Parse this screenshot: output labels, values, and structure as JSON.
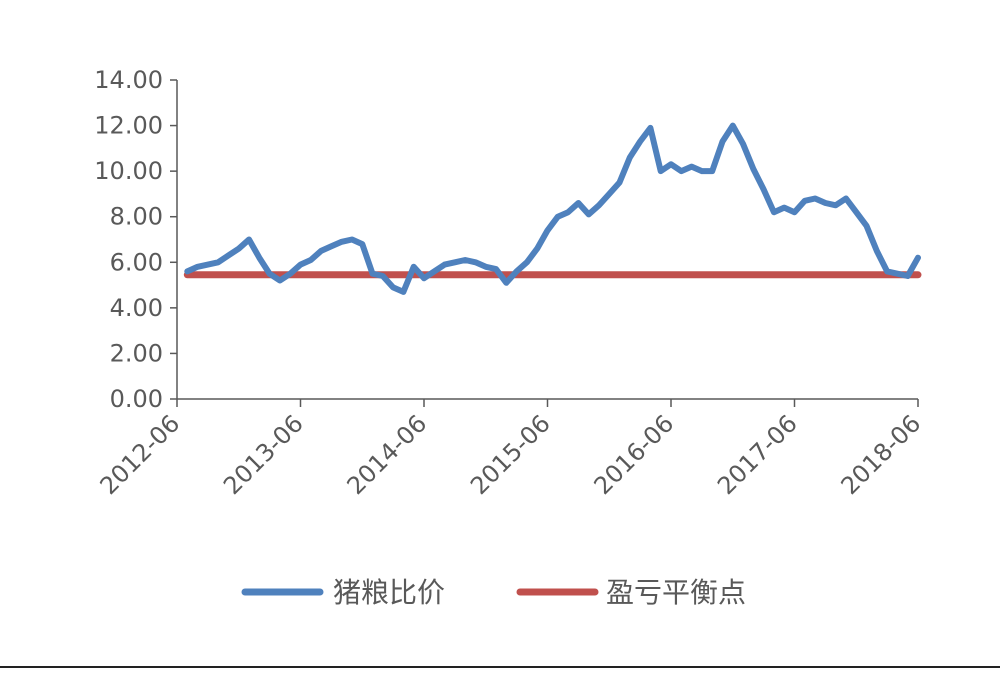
{
  "chart_data": {
    "type": "line",
    "title": "",
    "xlabel": "",
    "ylabel": "",
    "x_ticks": [
      "2012-06",
      "2013-06",
      "2014-06",
      "2015-06",
      "2016-06",
      "2017-06",
      "2018-06"
    ],
    "y_ticks": [
      "0.00",
      "2.00",
      "4.00",
      "6.00",
      "8.00",
      "10.00",
      "12.00",
      "14.00"
    ],
    "xlim": [
      "2012-06",
      "2018-06"
    ],
    "ylim": [
      0,
      14
    ],
    "grid": false,
    "legend_position": "bottom",
    "series": [
      {
        "name": "猪粮比价",
        "color": "#4f81bd",
        "x": [
          "2012-07",
          "2012-08",
          "2012-09",
          "2012-10",
          "2012-11",
          "2012-12",
          "2013-01",
          "2013-02",
          "2013-03",
          "2013-04",
          "2013-05",
          "2013-06",
          "2013-07",
          "2013-08",
          "2013-09",
          "2013-10",
          "2013-11",
          "2013-12",
          "2014-01",
          "2014-02",
          "2014-03",
          "2014-04",
          "2014-05",
          "2014-06",
          "2014-07",
          "2014-08",
          "2014-09",
          "2014-10",
          "2014-11",
          "2014-12",
          "2015-01",
          "2015-02",
          "2015-03",
          "2015-04",
          "2015-05",
          "2015-06",
          "2015-07",
          "2015-08",
          "2015-09",
          "2015-10",
          "2015-11",
          "2015-12",
          "2016-01",
          "2016-02",
          "2016-03",
          "2016-04",
          "2016-05",
          "2016-06",
          "2016-07",
          "2016-08",
          "2016-09",
          "2016-10",
          "2016-11",
          "2016-12",
          "2017-01",
          "2017-02",
          "2017-03",
          "2017-04",
          "2017-05",
          "2017-06",
          "2017-07",
          "2017-08",
          "2017-09",
          "2017-10",
          "2017-11",
          "2017-12",
          "2018-01",
          "2018-02",
          "2018-03",
          "2018-04",
          "2018-05",
          "2018-06"
        ],
        "values": [
          5.6,
          5.8,
          5.9,
          6.0,
          6.3,
          6.6,
          7.0,
          6.2,
          5.5,
          5.2,
          5.5,
          5.9,
          6.1,
          6.5,
          6.7,
          6.9,
          7.0,
          6.8,
          5.5,
          5.4,
          4.9,
          4.7,
          5.8,
          5.3,
          5.6,
          5.9,
          6.0,
          6.1,
          6.0,
          5.8,
          5.7,
          5.1,
          5.6,
          6.0,
          6.6,
          7.4,
          8.0,
          8.2,
          8.6,
          8.1,
          8.5,
          9.0,
          9.5,
          10.6,
          11.3,
          11.9,
          10.0,
          10.3,
          10.0,
          10.2,
          10.0,
          10.0,
          11.3,
          12.0,
          11.2,
          10.1,
          9.2,
          8.2,
          8.4,
          8.2,
          8.7,
          8.8,
          8.6,
          8.5,
          8.8,
          8.2,
          7.6,
          6.5,
          5.6,
          5.5,
          5.4,
          6.2
        ]
      },
      {
        "name": "盈亏平衡点",
        "color": "#c0504d",
        "x": [
          "2012-07",
          "2018-06"
        ],
        "values": [
          5.45,
          5.45
        ]
      }
    ]
  }
}
